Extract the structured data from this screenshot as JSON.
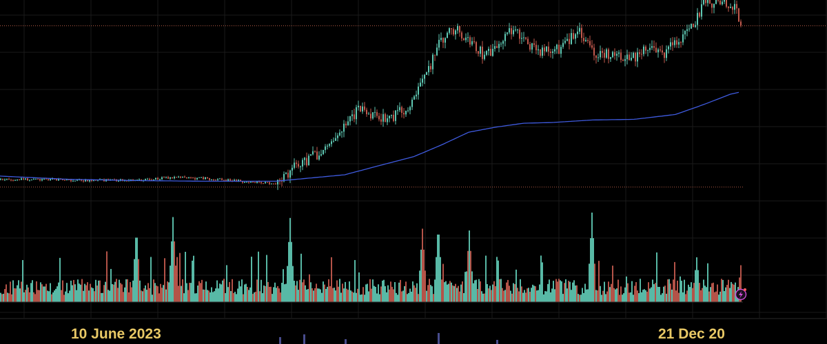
{
  "chart_data": {
    "type": "candlestick",
    "title": "",
    "xlabel": "",
    "ylabel": "",
    "grid": true,
    "x_labels": [
      {
        "text": "10 June 2023",
        "index": 238
      },
      {
        "text": "21 Dec 20",
        "index": 1090
      }
    ],
    "price_reference_lines": [
      {
        "name": "upper",
        "value": 1.48
      },
      {
        "name": "lower",
        "value": 0.98
      }
    ],
    "price_ylim": [
      0.92,
      1.56
    ],
    "volume_ylim": [
      0,
      100
    ],
    "price_path_anchors": [
      [
        0,
        1.004
      ],
      [
        200,
        1.0
      ],
      [
        250,
        1.01
      ],
      [
        300,
        1.006
      ],
      [
        400,
        0.99
      ],
      [
        430,
        1.05
      ],
      [
        470,
        1.092
      ],
      [
        500,
        1.18
      ],
      [
        520,
        1.22
      ],
      [
        540,
        1.2
      ],
      [
        560,
        1.186
      ],
      [
        590,
        1.228
      ],
      [
        610,
        1.29
      ],
      [
        640,
        1.44
      ],
      [
        660,
        1.47
      ],
      [
        680,
        1.43
      ],
      [
        700,
        1.39
      ],
      [
        720,
        1.41
      ],
      [
        740,
        1.47
      ],
      [
        760,
        1.44
      ],
      [
        780,
        1.4
      ],
      [
        800,
        1.4
      ],
      [
        820,
        1.42
      ],
      [
        840,
        1.47
      ],
      [
        860,
        1.4
      ],
      [
        880,
        1.39
      ],
      [
        900,
        1.38
      ],
      [
        920,
        1.38
      ],
      [
        940,
        1.41
      ],
      [
        960,
        1.39
      ],
      [
        980,
        1.43
      ],
      [
        1000,
        1.46
      ],
      [
        1020,
        1.55
      ],
      [
        1050,
        1.55
      ],
      [
        1065,
        1.54
      ],
      [
        1075,
        1.48
      ]
    ],
    "moving_average": [
      [
        0,
        1.014
      ],
      [
        100,
        1.004
      ],
      [
        200,
        1.0
      ],
      [
        300,
        0.998
      ],
      [
        400,
        0.998
      ],
      [
        500,
        1.018
      ],
      [
        560,
        1.052
      ],
      [
        600,
        1.074
      ],
      [
        640,
        1.11
      ],
      [
        680,
        1.15
      ],
      [
        720,
        1.166
      ],
      [
        760,
        1.178
      ],
      [
        800,
        1.18
      ],
      [
        860,
        1.188
      ],
      [
        920,
        1.19
      ],
      [
        980,
        1.205
      ],
      [
        1020,
        1.235
      ],
      [
        1060,
        1.268
      ],
      [
        1075,
        1.275
      ]
    ],
    "volume_spikes": [
      [
        197,
        84
      ],
      [
        250,
        95
      ],
      [
        420,
        94
      ],
      [
        612,
        82
      ],
      [
        635,
        88
      ],
      [
        680,
        80
      ],
      [
        858,
        100
      ],
      [
        1010,
        50
      ],
      [
        1075,
        48
      ]
    ],
    "colors": {
      "background": "#000000",
      "up": "#5fc9b4",
      "down": "#c35a4e",
      "moving_average": "#3f5be0",
      "reference_lines": "#c8664f",
      "grid": "#1a1a1a",
      "date_label": "#e8c865",
      "indicator_icon": "#cf4fd6"
    },
    "icons": {
      "indicator": "lightning-icon"
    }
  }
}
